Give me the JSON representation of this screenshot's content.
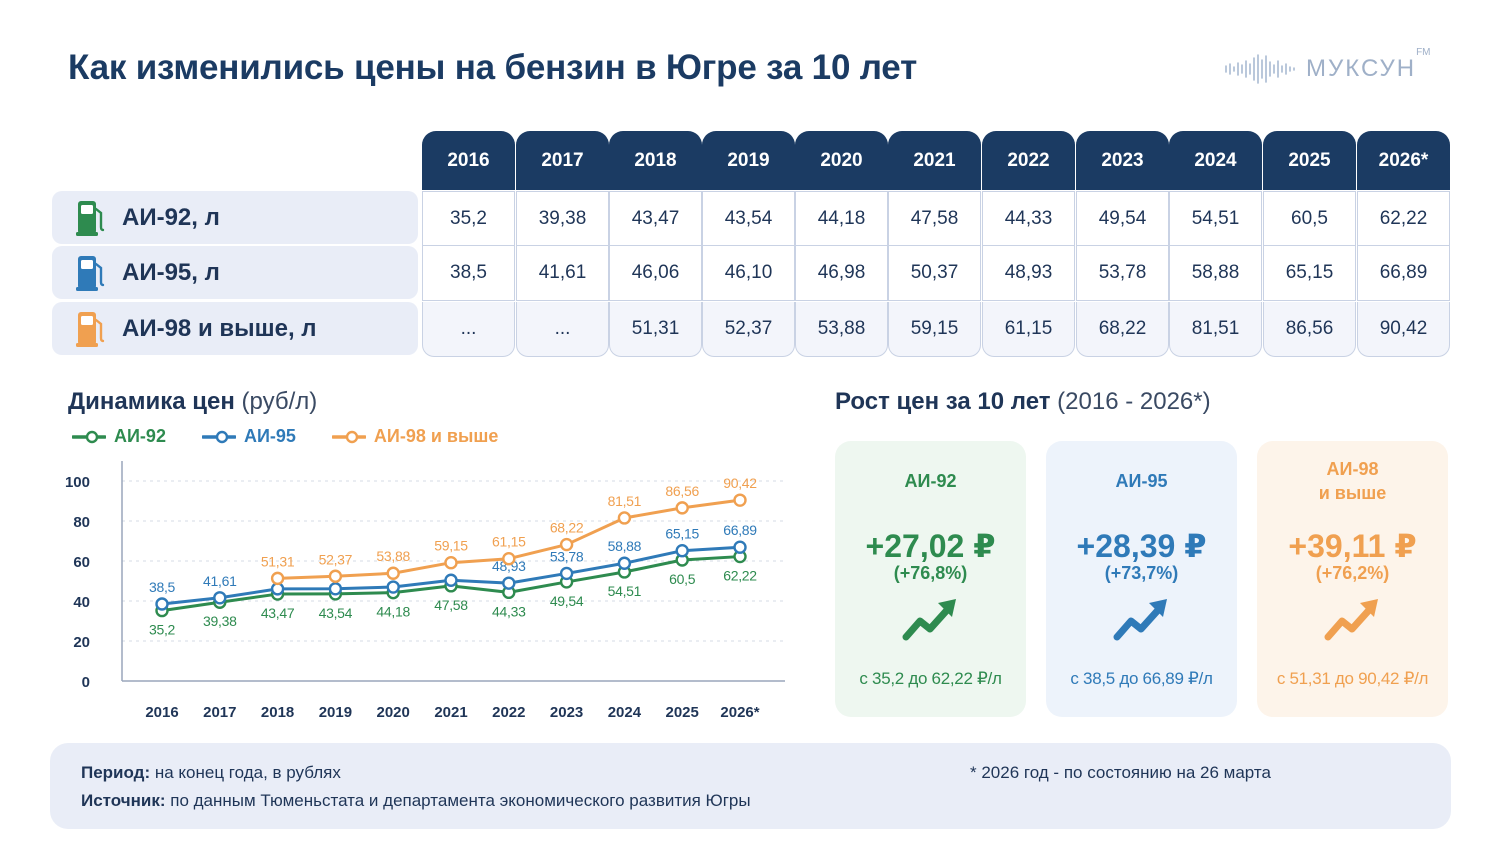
{
  "title": "Как изменились цены на бензин в Югре за 10 лет",
  "logo": {
    "text": "МУКСУН",
    "sup": "FM"
  },
  "colors": {
    "ai92": "#2e8b4f",
    "ai95": "#2f7ab8",
    "ai98": "#f0a050",
    "navy": "#1b3b63"
  },
  "table": {
    "years": [
      "2016",
      "2017",
      "2018",
      "2019",
      "2020",
      "2021",
      "2022",
      "2023",
      "2024",
      "2025",
      "2026*"
    ],
    "rows": [
      {
        "label": "АИ-92, л",
        "icon": "fuel-pump-icon",
        "values": [
          "35,2",
          "39,38",
          "43,47",
          "43,54",
          "44,18",
          "47,58",
          "44,33",
          "49,54",
          "54,51",
          "60,5",
          "62,22"
        ]
      },
      {
        "label": "АИ-95, л",
        "icon": "fuel-pump-icon",
        "values": [
          "38,5",
          "41,61",
          "46,06",
          "46,10",
          "46,98",
          "50,37",
          "48,93",
          "53,78",
          "58,88",
          "65,15",
          "66,89"
        ]
      },
      {
        "label": "АИ-98 и выше, л",
        "icon": "fuel-pump-icon",
        "values": [
          "...",
          "...",
          "51,31",
          "52,37",
          "53,88",
          "59,15",
          "61,15",
          "68,22",
          "81,51",
          "86,56",
          "90,42"
        ]
      }
    ]
  },
  "chart_title": {
    "main": "Динамика цен",
    "unit": "(руб/л)"
  },
  "chart_data": {
    "type": "line",
    "x": [
      "2016",
      "2017",
      "2018",
      "2019",
      "2020",
      "2021",
      "2022",
      "2023",
      "2024",
      "2025",
      "2026*"
    ],
    "ylim": [
      0,
      100
    ],
    "yticks": [
      0,
      20,
      40,
      60,
      80,
      100
    ],
    "grid": true,
    "legend_position": "top-left",
    "series": [
      {
        "name": "АИ-92",
        "color": "#2e8b4f",
        "values": [
          35.2,
          39.38,
          43.47,
          43.54,
          44.18,
          47.58,
          44.33,
          49.54,
          54.51,
          60.5,
          62.22
        ],
        "labels": [
          "35,2",
          "39,38",
          "43,47",
          "43,54",
          "44,18",
          "47,58",
          "44,33",
          "49,54",
          "54,51",
          "60,5",
          "62,22"
        ],
        "label_side": "below"
      },
      {
        "name": "АИ-95",
        "color": "#2f7ab8",
        "values": [
          38.5,
          41.61,
          46.06,
          46.1,
          46.98,
          50.37,
          48.93,
          53.78,
          58.88,
          65.15,
          66.89
        ],
        "labels": [
          "38,5",
          "41,61",
          "",
          "",
          "",
          "",
          "48,93",
          "53,78",
          "58,88",
          "65,15",
          "66,89"
        ],
        "label_side": "above"
      },
      {
        "name": "АИ-98 и выше",
        "color": "#f0a050",
        "values": [
          null,
          null,
          51.31,
          52.37,
          53.88,
          59.15,
          61.15,
          68.22,
          81.51,
          86.56,
          90.42
        ],
        "labels": [
          "",
          "",
          "51,31",
          "52,37",
          "53,88",
          "59,15",
          "61,15",
          "68,22",
          "81,51",
          "86,56",
          "90,42"
        ],
        "label_side": "above"
      }
    ]
  },
  "growth_title": {
    "main": "Рост цен за 10 лет",
    "years": "(2016 - 2026*)"
  },
  "growth": [
    {
      "name": "АИ-92",
      "value": "+27,02 ₽",
      "percent": "(+76,8%)",
      "range": "с 35,2 до 62,22 ₽/л",
      "color": "#2e8b4f",
      "bg": "#eef7f0"
    },
    {
      "name": "АИ-95",
      "value": "+28,39 ₽",
      "percent": "(+73,7%)",
      "range": "с 38,5 до 66,89 ₽/л",
      "color": "#2f7ab8",
      "bg": "#edf3fb"
    },
    {
      "name": "АИ-98\nи выше",
      "value": "+39,11 ₽",
      "percent": "(+76,2%)",
      "range": "с 51,31 до 90,42 ₽/л",
      "color": "#f0a050",
      "bg": "#fdf4ea"
    }
  ],
  "footer": {
    "period_label": "Период:",
    "period_text": "на конец года, в рублях",
    "source_label": "Источник:",
    "source_text": "по данным Тюменьстата и департамента экономического развития Югры",
    "note": "* 2026 год - по состоянию на 26 марта"
  }
}
